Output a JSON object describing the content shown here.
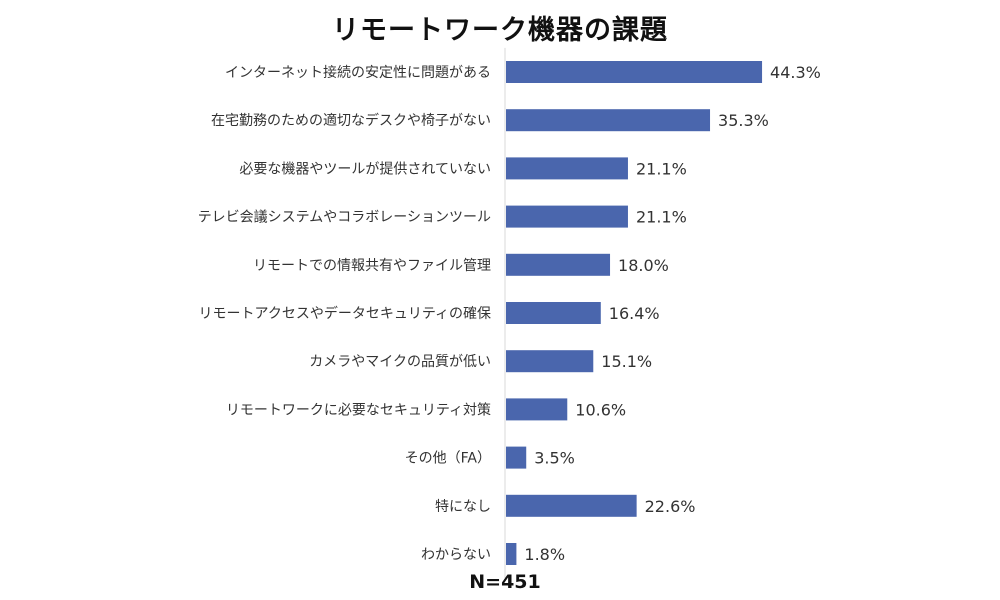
{
  "chart_data": {
    "type": "bar",
    "orientation": "horizontal",
    "title": "リモートワーク機器の課題",
    "categories": [
      "インターネット接続の安定性に問題がある",
      "在宅勤務のための適切なデスクや椅子がない",
      "必要な機器やツールが提供されていない",
      "テレビ会議システムやコラボレーションツール",
      "リモートでの情報共有やファイル管理",
      "リモートアクセスやデータセキュリティの確保",
      "カメラやマイクの品質が低い",
      "リモートワークに必要なセキュリティ対策",
      "その他（FA）",
      "特になし",
      "わからない"
    ],
    "values": [
      44.3,
      35.3,
      21.1,
      21.1,
      18.0,
      16.4,
      15.1,
      10.6,
      3.5,
      22.6,
      1.8
    ],
    "value_labels": [
      "44.3%",
      "35.3%",
      "21.1%",
      "21.1%",
      "18.0%",
      "16.4%",
      "15.1%",
      "10.6%",
      "3.5%",
      "22.6%",
      "1.8%"
    ],
    "xlim": [
      0,
      100
    ],
    "grid": false,
    "legend": "none",
    "bar_color": "#4a66ad",
    "note": "N=451"
  }
}
